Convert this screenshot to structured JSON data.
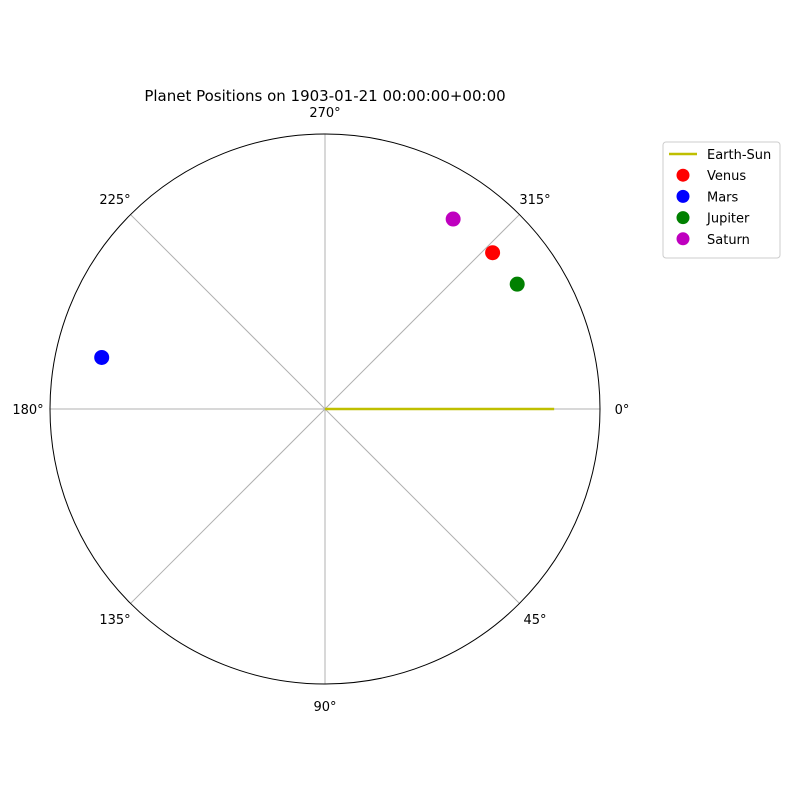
{
  "chart_data": {
    "type": "scatter",
    "projection": "polar",
    "angle_unit": "degrees",
    "angle_direction": "clockwise",
    "zero_location": "east",
    "title": "Planet Positions on 1903-01-21 00:00:00+00:00",
    "angle_ticks": [
      0,
      45,
      90,
      135,
      180,
      225,
      270,
      315
    ],
    "angle_tick_labels": [
      "0°",
      "45°",
      "90°",
      "135°",
      "180°",
      "225°",
      "270°",
      "315°"
    ],
    "rlim": [
      0,
      1.2
    ],
    "grid": true,
    "radial_tick_labels_shown": false,
    "legend_position": "outside top-right",
    "series": [
      {
        "name": "Earth-Sun",
        "kind": "line",
        "color": "#bfbf00",
        "theta": [
          0,
          0
        ],
        "r": [
          0,
          1.0
        ]
      },
      {
        "name": "Venus",
        "kind": "marker",
        "color": "#ff0000",
        "theta": 317,
        "r": 1.0
      },
      {
        "name": "Mars",
        "kind": "marker",
        "color": "#0000ff",
        "theta": 193,
        "r": 1.0
      },
      {
        "name": "Jupiter",
        "kind": "marker",
        "color": "#008000",
        "theta": 327,
        "r": 1.0
      },
      {
        "name": "Saturn",
        "kind": "marker",
        "color": "#bf00bf",
        "theta": 304,
        "r": 1.0
      }
    ]
  }
}
